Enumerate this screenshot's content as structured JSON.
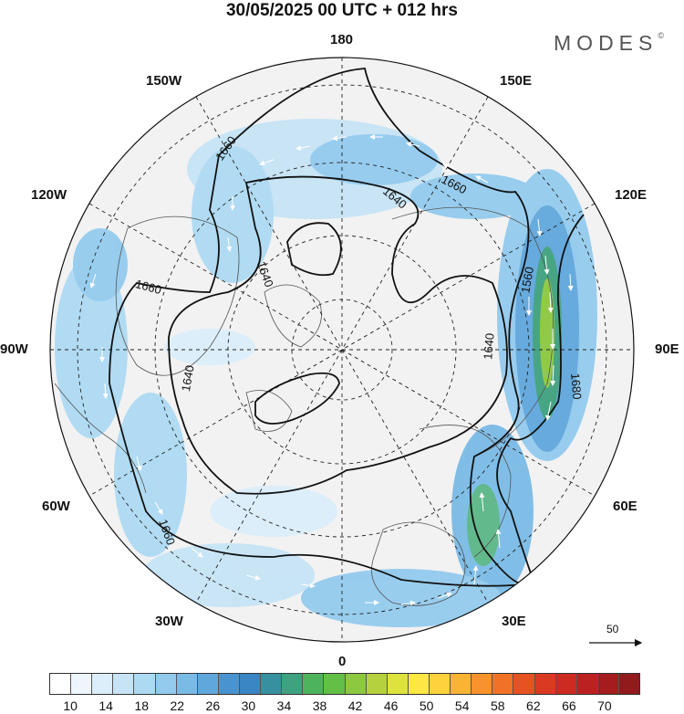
{
  "title": "30/05/2025  00 UTC  + 012 hrs",
  "brand": {
    "name": "MODES",
    "mark": "©"
  },
  "longitude_labels": {
    "lon_180": "180",
    "lon_150W": "150W",
    "lon_150E": "150E",
    "lon_120W": "120W",
    "lon_120E": "120E",
    "lon_90W": "90W",
    "lon_90E": "90E",
    "lon_60W": "60W",
    "lon_60E": "60E",
    "lon_30W": "30W",
    "lon_30E": "30E",
    "lon_0": "0"
  },
  "contour_labels": {
    "c1": "1660",
    "c2": "1640",
    "c3": "1660",
    "c4": "1560",
    "c5": "1640",
    "c6": "1660",
    "c7": "1640",
    "c8": "1640",
    "c9": "1680",
    "c10": "1660"
  },
  "wind_scale": {
    "value": "50",
    "arrow_name": "reference-wind-arrow"
  },
  "colorbar": {
    "tick_labels": [
      "10",
      "14",
      "18",
      "22",
      "26",
      "30",
      "34",
      "38",
      "42",
      "46",
      "50",
      "54",
      "58",
      "62",
      "66",
      "70"
    ],
    "colors": [
      "#ffffff",
      "#eef6fc",
      "#dbeefa",
      "#c6e4f6",
      "#addaf3",
      "#93cbee",
      "#7abbe6",
      "#60a7dc",
      "#4893d0",
      "#3a85c3",
      "#36909f",
      "#3ea17f",
      "#4db35c",
      "#63bf45",
      "#8cc840",
      "#b5d23e",
      "#dde33c",
      "#fce743",
      "#fdd23c",
      "#fbb334",
      "#f7922c",
      "#f17227",
      "#e85223",
      "#db3a22",
      "#cd2a22",
      "#bc2121",
      "#a61c1e",
      "#901a1c"
    ]
  }
}
